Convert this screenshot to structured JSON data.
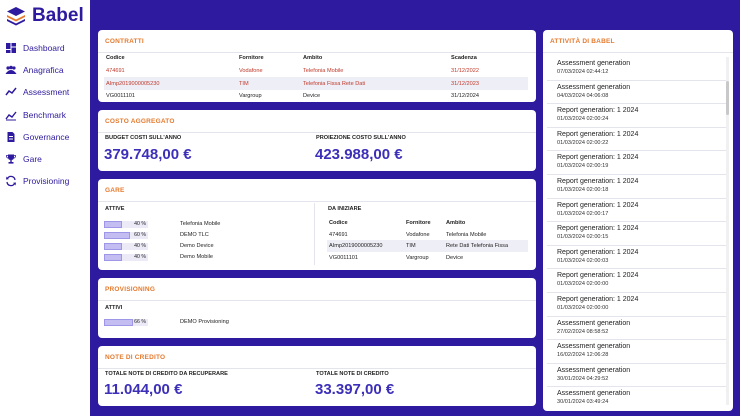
{
  "app": {
    "title": "Babel"
  },
  "sidebar": {
    "items": [
      {
        "label": "Dashboard",
        "icon": "dashboard-icon"
      },
      {
        "label": "Anagrafica",
        "icon": "people-icon"
      },
      {
        "label": "Assessment",
        "icon": "trend-icon"
      },
      {
        "label": "Benchmark",
        "icon": "chart-line-icon"
      },
      {
        "label": "Governance",
        "icon": "document-icon"
      },
      {
        "label": "Gare",
        "icon": "trophy-icon"
      },
      {
        "label": "Provisioning",
        "icon": "sync-icon"
      }
    ]
  },
  "contratti": {
    "title": "CONTRATTI",
    "headers": [
      "Codice",
      "Fornitore",
      "Ambito",
      "Scadenza"
    ],
    "rows": [
      {
        "codice": "474691",
        "fornitore": "Vodafone",
        "ambito": "Telefonia Mobile",
        "scadenza": "31/12/2022"
      },
      {
        "codice": "AImp2019000005230",
        "fornitore": "TIM",
        "ambito": "Telefonia Fissa Rete Dati",
        "scadenza": "31/12/2023"
      },
      {
        "codice": "VG0011101",
        "fornitore": "Vargroup",
        "ambito": "Device",
        "scadenza": "31/12/2024"
      }
    ]
  },
  "costo": {
    "title": "COSTO AGGREGATO",
    "budget_label": "BUDGET COSTI SULL'ANNO",
    "budget_value": "379.748,00 €",
    "proiezione_label": "PROIEZIONE COSTO SULL'ANNO",
    "proiezione_value": "423.988,00 €"
  },
  "gare": {
    "title": "GARE",
    "attive_label": "ATTIVE",
    "attive": [
      {
        "pct": 40,
        "pct_label": "40 %",
        "name": "Telefonia Mobile"
      },
      {
        "pct": 60,
        "pct_label": "60 %",
        "name": "DEMO TLC"
      },
      {
        "pct": 40,
        "pct_label": "40 %",
        "name": "Demo Device"
      },
      {
        "pct": 40,
        "pct_label": "40 %",
        "name": "Demo Mobile"
      }
    ],
    "da_iniziare_label": "DA INIZIARE",
    "headers": [
      "Codice",
      "Fornitore",
      "Ambito"
    ],
    "rows": [
      {
        "codice": "474691",
        "fornitore": "Vodafone",
        "ambito": "Telefonia Mobile"
      },
      {
        "codice": "AImp2019000005230",
        "fornitore": "TIM",
        "ambito": "Rete Dati Telefonia Fissa"
      },
      {
        "codice": "VG0011101",
        "fornitore": "Vargroup",
        "ambito": "Device"
      }
    ]
  },
  "provisioning": {
    "title": "PROVISIONING",
    "attivi_label": "ATTIVI",
    "items": [
      {
        "pct": 66,
        "pct_label": "66 %",
        "name": "DEMO Provisioning"
      }
    ]
  },
  "note": {
    "title": "NOTE DI CREDITO",
    "recuperare_label": "TOTALE NOTE DI CREDITO DA RECUPERARE",
    "recuperare_value": "11.044,00 €",
    "totale_label": "TOTALE NOTE DI CREDITO",
    "totale_value": "33.397,00 €"
  },
  "attivita": {
    "title": "ATTIVITÀ DI BABEL",
    "items": [
      {
        "title": "Assessment generation",
        "date": "07/03/2024 02:44:12"
      },
      {
        "title": "Assessment generation",
        "date": "04/03/2024 04:06:08"
      },
      {
        "title": "Report generation: 1 2024",
        "date": "01/03/2024 02:00:24"
      },
      {
        "title": "Report generation: 1 2024",
        "date": "01/03/2024 02:00:22"
      },
      {
        "title": "Report generation: 1 2024",
        "date": "01/03/2024 02:00:19"
      },
      {
        "title": "Report generation: 1 2024",
        "date": "01/03/2024 02:00:18"
      },
      {
        "title": "Report generation: 1 2024",
        "date": "01/03/2024 02:00:17"
      },
      {
        "title": "Report generation: 1 2024",
        "date": "01/03/2024 02:00:15"
      },
      {
        "title": "Report generation: 1 2024",
        "date": "01/03/2024 02:00:03"
      },
      {
        "title": "Report generation: 1 2024",
        "date": "01/03/2024 02:00:00"
      },
      {
        "title": "Report generation: 1 2024",
        "date": "01/03/2024 02:00:00"
      },
      {
        "title": "Assessment generation",
        "date": "27/02/2024 08:58:52"
      },
      {
        "title": "Assessment generation",
        "date": "16/02/2024 12:06:28"
      },
      {
        "title": "Assessment generation",
        "date": "30/01/2024 04:29:52"
      },
      {
        "title": "Assessment generation",
        "date": "30/01/2024 03:49:24"
      }
    ]
  },
  "colors": {
    "brand": "#2d1a9e",
    "accent": "#e57a2e",
    "value": "#3c2fb8",
    "warning_text": "#c0392b"
  }
}
